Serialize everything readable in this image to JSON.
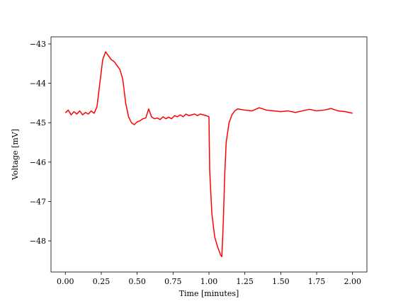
{
  "chart_data": {
    "type": "line",
    "xlabel": "Time [minutes]",
    "ylabel": "Voltage [mV]",
    "x": [
      0.0,
      0.02,
      0.04,
      0.06,
      0.08,
      0.1,
      0.12,
      0.14,
      0.16,
      0.18,
      0.2,
      0.22,
      0.24,
      0.26,
      0.28,
      0.3,
      0.32,
      0.34,
      0.36,
      0.38,
      0.4,
      0.42,
      0.44,
      0.46,
      0.48,
      0.5,
      0.52,
      0.54,
      0.56,
      0.58,
      0.6,
      0.62,
      0.64,
      0.66,
      0.68,
      0.7,
      0.72,
      0.74,
      0.76,
      0.78,
      0.8,
      0.82,
      0.84,
      0.86,
      0.88,
      0.9,
      0.92,
      0.94,
      0.96,
      0.98,
      1.0,
      1.005,
      1.02,
      1.04,
      1.06,
      1.08,
      1.09,
      1.1,
      1.11,
      1.12,
      1.14,
      1.16,
      1.18,
      1.2,
      1.25,
      1.3,
      1.35,
      1.4,
      1.45,
      1.5,
      1.55,
      1.6,
      1.65,
      1.7,
      1.75,
      1.8,
      1.85,
      1.9,
      1.95,
      2.0
    ],
    "series": [
      {
        "color": "#ff0000",
        "values": [
          -44.75,
          -44.68,
          -44.8,
          -44.72,
          -44.78,
          -44.7,
          -44.8,
          -44.74,
          -44.78,
          -44.7,
          -44.76,
          -44.6,
          -44.0,
          -43.4,
          -43.2,
          -43.3,
          -43.4,
          -43.45,
          -43.55,
          -43.65,
          -43.9,
          -44.5,
          -44.85,
          -45.0,
          -45.05,
          -44.98,
          -44.95,
          -44.9,
          -44.88,
          -44.65,
          -44.85,
          -44.9,
          -44.88,
          -44.92,
          -44.85,
          -44.9,
          -44.86,
          -44.9,
          -44.82,
          -44.85,
          -44.8,
          -44.85,
          -44.78,
          -44.82,
          -44.8,
          -44.78,
          -44.82,
          -44.78,
          -44.8,
          -44.82,
          -44.85,
          -46.2,
          -47.3,
          -47.9,
          -48.15,
          -48.35,
          -48.4,
          -47.5,
          -46.3,
          -45.5,
          -45.0,
          -44.8,
          -44.7,
          -44.65,
          -44.68,
          -44.7,
          -44.62,
          -44.68,
          -44.7,
          -44.72,
          -44.7,
          -44.74,
          -44.7,
          -44.66,
          -44.7,
          -44.68,
          -44.64,
          -44.7,
          -44.72,
          -44.76
        ]
      }
    ],
    "xlim": [
      -0.1,
      2.1
    ],
    "ylim": [
      -48.79,
      -42.82
    ],
    "xticks": [
      {
        "value": 0,
        "label": "0.00"
      },
      {
        "value": 0.25,
        "label": "0.25"
      },
      {
        "value": 0.5,
        "label": "0.50"
      },
      {
        "value": 0.75,
        "label": "0.75"
      },
      {
        "value": 1,
        "label": "1.00"
      },
      {
        "value": 1.25,
        "label": "1.25"
      },
      {
        "value": 1.5,
        "label": "1.50"
      },
      {
        "value": 1.75,
        "label": "1.75"
      },
      {
        "value": 2,
        "label": "2.00"
      }
    ],
    "yticks": [
      {
        "value": -48,
        "label": "−48"
      },
      {
        "value": -47,
        "label": "−47"
      },
      {
        "value": -46,
        "label": "−46"
      },
      {
        "value": -45,
        "label": "−45"
      },
      {
        "value": -44,
        "label": "−44"
      },
      {
        "value": -43,
        "label": "−43"
      }
    ],
    "grid": false
  }
}
